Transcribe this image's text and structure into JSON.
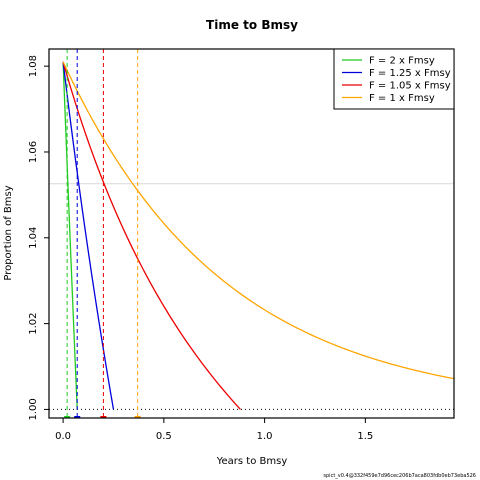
{
  "chart_data": {
    "type": "line",
    "title": "Time to Bmsy",
    "xlabel": "Years to Bmsy",
    "ylabel": "Proportion of Bmsy",
    "xlim": [
      -0.07,
      1.94
    ],
    "ylim": [
      0.998,
      1.084
    ],
    "x_ticks": [
      0,
      0.5,
      1,
      1.5
    ],
    "x_tick_labels": [
      "0.0",
      "0.5",
      "1.0",
      "1.5"
    ],
    "y_ticks": [
      1.0,
      1.02,
      1.04,
      1.06,
      1.08
    ],
    "y_tick_labels": [
      "1.00",
      "1.02",
      "1.04",
      "1.06",
      "1.08"
    ],
    "legend_position": "top-right",
    "start_value": 1.081,
    "reference_lines": {
      "dotted_horizontal": 1.0,
      "light_horizontal": 1.0526
    },
    "series": [
      {
        "name": "F = 2 x Fmsy",
        "color": "#22cc22",
        "t_end": 0.07,
        "curvature": 0.05,
        "marker_x": 0.02
      },
      {
        "name": "F = 1.25 x Fmsy",
        "color": "#0000dd",
        "t_end": 0.25,
        "curvature": 0.2,
        "marker_x": 0.07
      },
      {
        "name": "F = 1.05 x Fmsy",
        "color": "#ee0000",
        "t_end": 0.88,
        "curvature": 0.8,
        "marker_x": 0.2
      },
      {
        "name": "F = 1 x Fmsy",
        "color": "#ffa500",
        "tau": 0.8,
        "t_end": 1.94,
        "marker_x": 0.37,
        "asymptotic": true
      }
    ],
    "footnote": "spict_v0.4@332f459e7d96cec206b7aca803fdb0eb73eba526"
  }
}
